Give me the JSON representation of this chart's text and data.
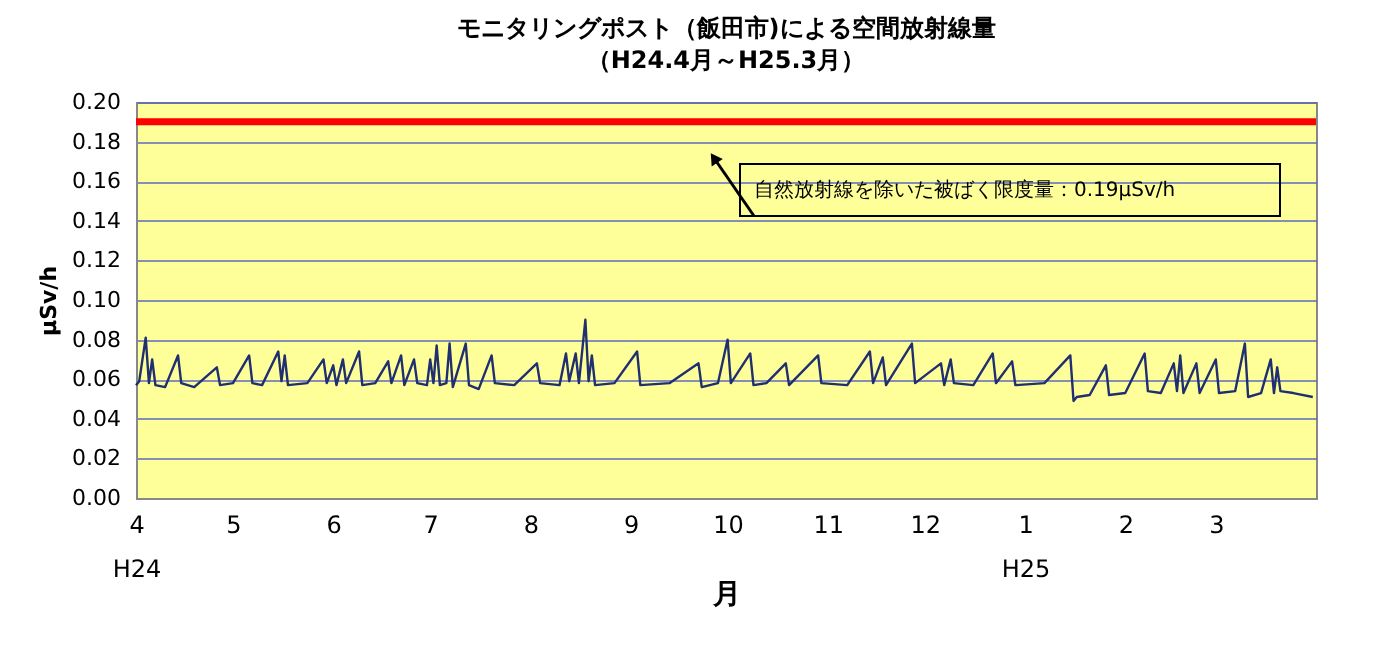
{
  "chart_data": {
    "type": "line",
    "title": "モニタリングポスト（飯田市)による空間放射線量",
    "subtitle": "（H24.4月～H25.3月）",
    "xlabel": "月",
    "ylabel": "μSv/h",
    "xlim": [
      "2012-04-01",
      "2013-04-01"
    ],
    "xticks": [
      {
        "value": "2012-04-01",
        "label": "4\nH24"
      },
      {
        "value": "2012-05-01",
        "label": "5"
      },
      {
        "value": "2012-06-01",
        "label": "6"
      },
      {
        "value": "2012-07-01",
        "label": "7"
      },
      {
        "value": "2012-08-01",
        "label": "8"
      },
      {
        "value": "2012-09-01",
        "label": "9"
      },
      {
        "value": "2012-10-01",
        "label": "10"
      },
      {
        "value": "2012-11-01",
        "label": "11"
      },
      {
        "value": "2012-12-01",
        "label": "12"
      },
      {
        "value": "2013-01-01",
        "label": "1\nH25"
      },
      {
        "value": "2013-02-01",
        "label": "2"
      },
      {
        "value": "2013-03-01",
        "label": "3"
      }
    ],
    "ylim": [
      0,
      0.2
    ],
    "yticks": [
      {
        "value": 0,
        "label": "0.00"
      },
      {
        "value": 0.02,
        "label": "0.02"
      },
      {
        "value": 0.04,
        "label": "0.04"
      },
      {
        "value": 0.06,
        "label": "0.06"
      },
      {
        "value": 0.08,
        "label": "0.08"
      },
      {
        "value": 0.1,
        "label": "0.10"
      },
      {
        "value": 0.12,
        "label": "0.12"
      },
      {
        "value": 0.14,
        "label": "0.14"
      },
      {
        "value": 0.16,
        "label": "0.16"
      },
      {
        "value": 0.18,
        "label": "0.18"
      },
      {
        "value": 0.2,
        "label": "0.20"
      }
    ],
    "grid": "y",
    "marker": "none",
    "line_style": "solid",
    "ref_lines": [
      {
        "axis": "y",
        "value": 0.19,
        "label": "自然放射線を除いた被ばく限度量：0.19μSv/h",
        "color": "#ff0000"
      }
    ],
    "series": [
      {
        "color": "#1f2f6f",
        "x": [
          "2012-04-01",
          "2012-04-02",
          "2012-04-04",
          "2012-04-05",
          "2012-04-06",
          "2012-04-07",
          "2012-04-10",
          "2012-04-14",
          "2012-04-15",
          "2012-04-19",
          "2012-04-26",
          "2012-04-27",
          "2012-05-01",
          "2012-05-06",
          "2012-05-07",
          "2012-05-10",
          "2012-05-15",
          "2012-05-16",
          "2012-05-17",
          "2012-05-18",
          "2012-05-24",
          "2012-05-29",
          "2012-05-30",
          "2012-06-01",
          "2012-06-02",
          "2012-06-04",
          "2012-06-05",
          "2012-06-09",
          "2012-06-10",
          "2012-06-14",
          "2012-06-18",
          "2012-06-19",
          "2012-06-22",
          "2012-06-23",
          "2012-06-26",
          "2012-06-27",
          "2012-06-30",
          "2012-07-01",
          "2012-07-02",
          "2012-07-03",
          "2012-07-04",
          "2012-07-06",
          "2012-07-07",
          "2012-07-08",
          "2012-07-12",
          "2012-07-13",
          "2012-07-16",
          "2012-07-20",
          "2012-07-21",
          "2012-07-27",
          "2012-08-03",
          "2012-08-04",
          "2012-08-10",
          "2012-08-12",
          "2012-08-13",
          "2012-08-15",
          "2012-08-16",
          "2012-08-18",
          "2012-08-19",
          "2012-08-20",
          "2012-08-21",
          "2012-08-27",
          "2012-09-03",
          "2012-09-04",
          "2012-09-13",
          "2012-09-22",
          "2012-09-23",
          "2012-09-28",
          "2012-10-01",
          "2012-10-02",
          "2012-10-08",
          "2012-10-09",
          "2012-10-13",
          "2012-10-19",
          "2012-10-20",
          "2012-10-29",
          "2012-10-30",
          "2012-11-07",
          "2012-11-14",
          "2012-11-15",
          "2012-11-18",
          "2012-11-19",
          "2012-11-27",
          "2012-11-28",
          "2012-12-06",
          "2012-12-07",
          "2012-12-09",
          "2012-12-10",
          "2012-12-16",
          "2012-12-22",
          "2012-12-23",
          "2012-12-28",
          "2012-12-29",
          "2013-01-07",
          "2013-01-15",
          "2013-01-16",
          "2013-01-17",
          "2013-01-21",
          "2013-01-26",
          "2013-01-27",
          "2013-02-01",
          "2013-02-07",
          "2013-02-08",
          "2013-02-12",
          "2013-02-16",
          "2013-02-17",
          "2013-02-18",
          "2013-02-19",
          "2013-02-23",
          "2013-02-24",
          "2013-03-01",
          "2013-03-02",
          "2013-03-07",
          "2013-03-10",
          "2013-03-11",
          "2013-03-15",
          "2013-03-18",
          "2013-03-19",
          "2013-03-20",
          "2013-03-21",
          "2013-03-25",
          "2013-03-31"
        ],
        "values": [
          0.057,
          0.059,
          0.081,
          0.058,
          0.07,
          0.057,
          0.056,
          0.072,
          0.058,
          0.056,
          0.066,
          0.057,
          0.058,
          0.072,
          0.058,
          0.057,
          0.074,
          0.059,
          0.072,
          0.057,
          0.058,
          0.07,
          0.058,
          0.067,
          0.057,
          0.07,
          0.058,
          0.074,
          0.057,
          0.058,
          0.069,
          0.058,
          0.072,
          0.057,
          0.07,
          0.058,
          0.057,
          0.07,
          0.058,
          0.077,
          0.057,
          0.058,
          0.078,
          0.056,
          0.078,
          0.057,
          0.055,
          0.072,
          0.058,
          0.057,
          0.068,
          0.058,
          0.057,
          0.073,
          0.059,
          0.073,
          0.058,
          0.09,
          0.059,
          0.072,
          0.057,
          0.058,
          0.074,
          0.057,
          0.058,
          0.068,
          0.056,
          0.058,
          0.08,
          0.058,
          0.073,
          0.057,
          0.058,
          0.068,
          0.057,
          0.072,
          0.058,
          0.057,
          0.074,
          0.058,
          0.071,
          0.057,
          0.078,
          0.058,
          0.068,
          0.057,
          0.07,
          0.058,
          0.057,
          0.073,
          0.058,
          0.069,
          0.057,
          0.058,
          0.072,
          0.049,
          0.051,
          0.052,
          0.067,
          0.052,
          0.053,
          0.073,
          0.054,
          0.053,
          0.068,
          0.054,
          0.072,
          0.053,
          0.068,
          0.053,
          0.07,
          0.053,
          0.054,
          0.078,
          0.051,
          0.053,
          0.07,
          0.053,
          0.066,
          0.054,
          0.053,
          0.051
        ]
      }
    ]
  }
}
